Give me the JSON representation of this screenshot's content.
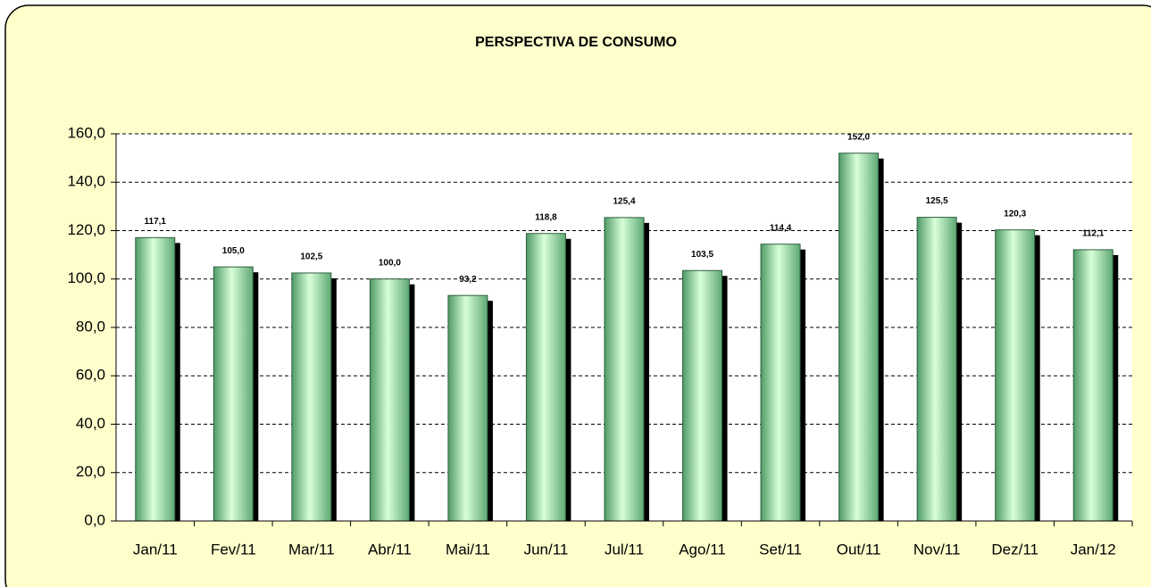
{
  "chart_data": {
    "type": "bar",
    "title": "PERSPECTIVA DE CONSUMO",
    "categories": [
      "Jan/11",
      "Fev/11",
      "Mar/11",
      "Abr/11",
      "Mai/11",
      "Jun/11",
      "Jul/11",
      "Ago/11",
      "Set/11",
      "Out/11",
      "Nov/11",
      "Dez/11",
      "Jan/12"
    ],
    "values": [
      117.1,
      105.0,
      102.5,
      100.0,
      93.2,
      118.8,
      125.4,
      103.5,
      114.4,
      152.0,
      125.5,
      120.3,
      112.1
    ],
    "value_labels": [
      "117,1",
      "105,0",
      "102,5",
      "100,0",
      "93,2",
      "118,8",
      "125,4",
      "103,5",
      "114,4",
      "152,0",
      "125,5",
      "120,3",
      "112,1"
    ],
    "color": "#7fcf95",
    "ylim": [
      0,
      160
    ],
    "yticks": [
      {
        "value": 0,
        "label": "0,0"
      },
      {
        "value": 20,
        "label": "20,0"
      },
      {
        "value": 40,
        "label": "40,0"
      },
      {
        "value": 60,
        "label": "60,0"
      },
      {
        "value": 80,
        "label": "80,0"
      },
      {
        "value": 100,
        "label": "100,0"
      },
      {
        "value": 120,
        "label": "120,0"
      },
      {
        "value": 140,
        "label": "140,0"
      },
      {
        "value": 160,
        "label": "160,0"
      }
    ],
    "grid": true
  }
}
